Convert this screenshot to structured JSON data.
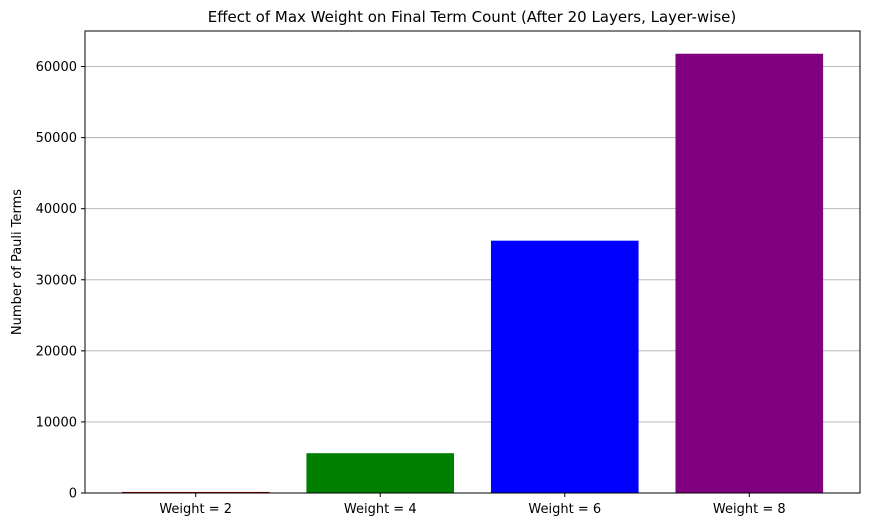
{
  "chart_data": {
    "type": "bar",
    "title": "Effect of Max Weight on Final Term Count (After 20 Layers, Layer-wise)",
    "xlabel": "",
    "ylabel": "Number of Pauli Terms",
    "categories": [
      "Weight = 2",
      "Weight = 4",
      "Weight = 6",
      "Weight = 8"
    ],
    "values": [
      150,
      5600,
      35500,
      61800
    ],
    "colors": [
      "#8b0000",
      "#008000",
      "#0000ff",
      "#800080"
    ],
    "ylim": [
      0,
      65000
    ],
    "yticks": [
      0,
      10000,
      20000,
      30000,
      40000,
      50000,
      60000
    ],
    "grid": "y"
  }
}
